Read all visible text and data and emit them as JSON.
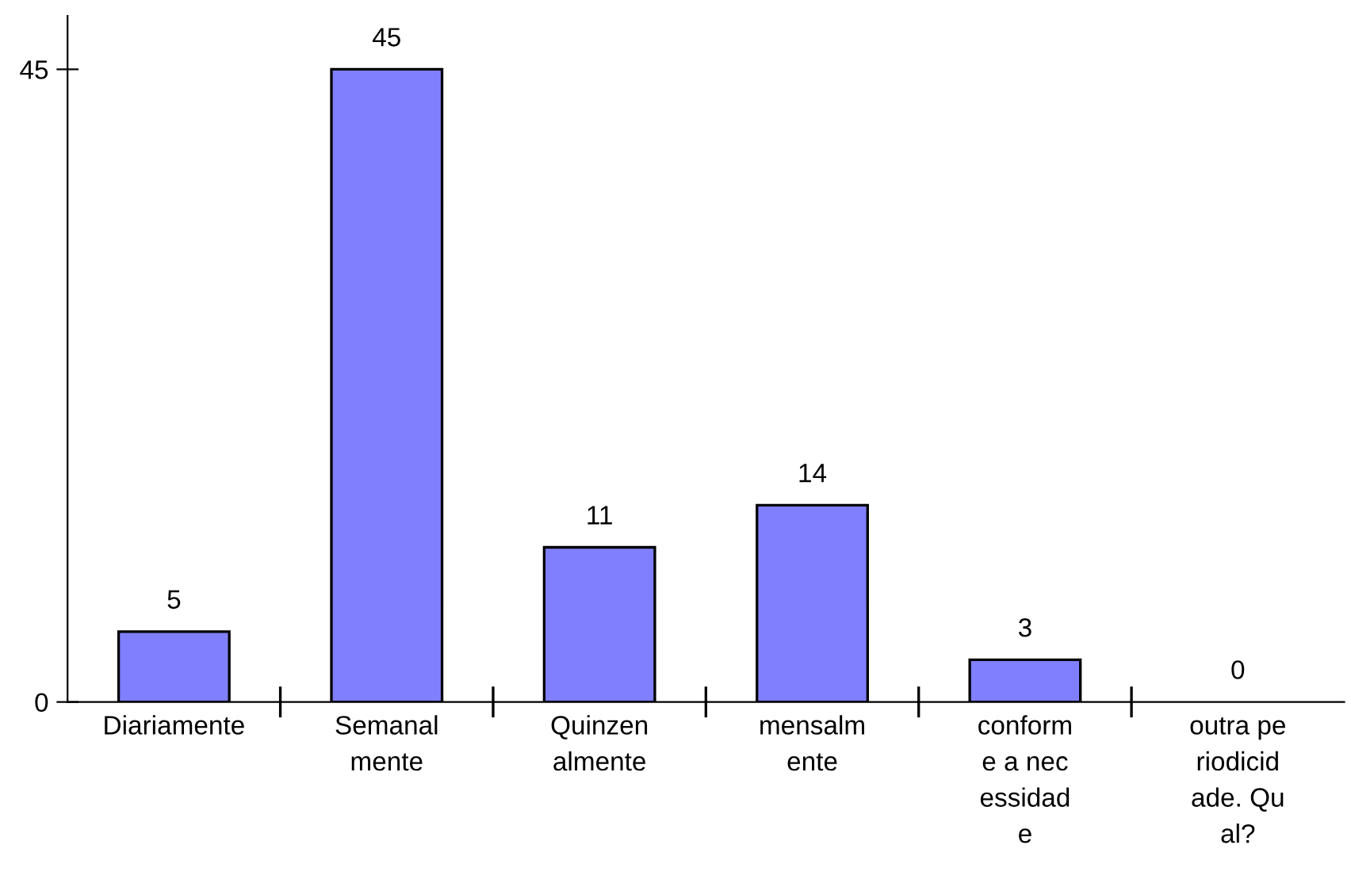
{
  "chart_data": {
    "type": "bar",
    "categories": [
      "Diariamente",
      "Semanal\nmente",
      "Quinzen\nalmente",
      "mensalm\nente",
      "conform\ne a nec\nessidad\ne",
      "outra pe\nriodicid\nade. Qu\nal?"
    ],
    "values": [
      5,
      45,
      11,
      14,
      3,
      0
    ],
    "color": "#8080ff",
    "ylim": [
      0,
      48.8
    ],
    "yticks": [
      0,
      45
    ],
    "data_labels": true,
    "grid": false,
    "legend": false
  }
}
